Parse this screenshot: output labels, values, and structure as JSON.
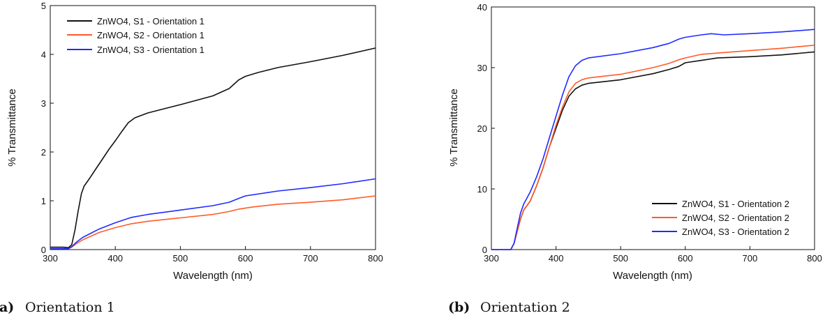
{
  "chart_data": [
    {
      "type": "line",
      "caption_label": "(a)",
      "caption_text": "Orientation 1",
      "xlabel": "Wavelength (nm)",
      "ylabel": "% Transmittance",
      "xlim": [
        300,
        800
      ],
      "ylim": [
        0,
        5
      ],
      "xticks": [
        300,
        400,
        500,
        600,
        700,
        800
      ],
      "yticks": [
        0,
        1,
        2,
        3,
        4,
        5
      ],
      "grid": false,
      "legend_position": "top-left",
      "series": [
        {
          "name": "ZnWO4, S1 - Orientation 1",
          "color": "#111111",
          "points": [
            [
              300,
              0.05
            ],
            [
              320,
              0.05
            ],
            [
              328,
              0.04
            ],
            [
              333,
              0.1
            ],
            [
              338,
              0.4
            ],
            [
              343,
              0.8
            ],
            [
              348,
              1.15
            ],
            [
              352,
              1.3
            ],
            [
              360,
              1.45
            ],
            [
              370,
              1.65
            ],
            [
              380,
              1.85
            ],
            [
              390,
              2.05
            ],
            [
              400,
              2.23
            ],
            [
              410,
              2.42
            ],
            [
              420,
              2.6
            ],
            [
              430,
              2.7
            ],
            [
              450,
              2.8
            ],
            [
              500,
              2.97
            ],
            [
              550,
              3.15
            ],
            [
              575,
              3.3
            ],
            [
              590,
              3.48
            ],
            [
              600,
              3.55
            ],
            [
              620,
              3.63
            ],
            [
              650,
              3.73
            ],
            [
              700,
              3.85
            ],
            [
              750,
              3.98
            ],
            [
              800,
              4.13
            ]
          ]
        },
        {
          "name": "ZnWO4, S2 - Orientation 1",
          "color": "#ff5a28",
          "points": [
            [
              300,
              0.02
            ],
            [
              328,
              0.02
            ],
            [
              333,
              0.05
            ],
            [
              340,
              0.12
            ],
            [
              350,
              0.2
            ],
            [
              375,
              0.35
            ],
            [
              400,
              0.45
            ],
            [
              425,
              0.53
            ],
            [
              450,
              0.58
            ],
            [
              500,
              0.65
            ],
            [
              550,
              0.72
            ],
            [
              575,
              0.78
            ],
            [
              590,
              0.83
            ],
            [
              610,
              0.87
            ],
            [
              650,
              0.93
            ],
            [
              700,
              0.97
            ],
            [
              750,
              1.02
            ],
            [
              800,
              1.1
            ]
          ]
        },
        {
          "name": "ZnWO4, S3 - Orientation 1",
          "color": "#1f2bff",
          "points": [
            [
              300,
              0.02
            ],
            [
              328,
              0.02
            ],
            [
              333,
              0.06
            ],
            [
              340,
              0.15
            ],
            [
              350,
              0.25
            ],
            [
              375,
              0.42
            ],
            [
              400,
              0.55
            ],
            [
              425,
              0.66
            ],
            [
              450,
              0.72
            ],
            [
              500,
              0.81
            ],
            [
              550,
              0.9
            ],
            [
              575,
              0.97
            ],
            [
              590,
              1.05
            ],
            [
              600,
              1.1
            ],
            [
              650,
              1.2
            ],
            [
              700,
              1.27
            ],
            [
              750,
              1.35
            ],
            [
              800,
              1.45
            ]
          ]
        }
      ]
    },
    {
      "type": "line",
      "caption_label": "(b)",
      "caption_text": "Orientation 2",
      "xlabel": "Wavelength (nm)",
      "ylabel": "% Transmittance",
      "xlim": [
        300,
        800
      ],
      "ylim": [
        0,
        40
      ],
      "xticks": [
        300,
        400,
        500,
        600,
        700,
        800
      ],
      "yticks": [
        0,
        10,
        20,
        30,
        40
      ],
      "grid": false,
      "legend_position": "bottom-right",
      "series": [
        {
          "name": "ZnWO4, S1 - Orientation 2",
          "color": "#111111",
          "points": [
            [
              300,
              0
            ],
            [
              330,
              0
            ],
            [
              335,
              1
            ],
            [
              340,
              3
            ],
            [
              345,
              5
            ],
            [
              350,
              6.5
            ],
            [
              360,
              8
            ],
            [
              370,
              10.5
            ],
            [
              380,
              13.5
            ],
            [
              390,
              17
            ],
            [
              400,
              20
            ],
            [
              410,
              23
            ],
            [
              420,
              25.3
            ],
            [
              430,
              26.5
            ],
            [
              440,
              27.1
            ],
            [
              450,
              27.4
            ],
            [
              500,
              28
            ],
            [
              550,
              29
            ],
            [
              575,
              29.7
            ],
            [
              590,
              30.2
            ],
            [
              600,
              30.8
            ],
            [
              625,
              31.2
            ],
            [
              650,
              31.6
            ],
            [
              700,
              31.8
            ],
            [
              750,
              32.1
            ],
            [
              800,
              32.6
            ]
          ]
        },
        {
          "name": "ZnWO4, S2 - Orientation 2",
          "color": "#ff5a28",
          "points": [
            [
              300,
              0
            ],
            [
              330,
              0
            ],
            [
              335,
              1
            ],
            [
              340,
              3
            ],
            [
              345,
              5
            ],
            [
              350,
              6.5
            ],
            [
              360,
              8
            ],
            [
              370,
              10.5
            ],
            [
              380,
              13.5
            ],
            [
              390,
              17
            ],
            [
              400,
              20.5
            ],
            [
              410,
              23.5
            ],
            [
              420,
              26
            ],
            [
              430,
              27.4
            ],
            [
              440,
              28
            ],
            [
              450,
              28.3
            ],
            [
              500,
              28.9
            ],
            [
              550,
              30
            ],
            [
              575,
              30.7
            ],
            [
              590,
              31.3
            ],
            [
              600,
              31.6
            ],
            [
              625,
              32.2
            ],
            [
              650,
              32.4
            ],
            [
              700,
              32.8
            ],
            [
              750,
              33.2
            ],
            [
              800,
              33.7
            ]
          ]
        },
        {
          "name": "ZnWO4, S3 - Orientation 2",
          "color": "#1f2bff",
          "points": [
            [
              300,
              0
            ],
            [
              330,
              0
            ],
            [
              335,
              1
            ],
            [
              340,
              3.5
            ],
            [
              345,
              6
            ],
            [
              350,
              7.5
            ],
            [
              360,
              9.5
            ],
            [
              370,
              12
            ],
            [
              380,
              15
            ],
            [
              390,
              18.5
            ],
            [
              400,
              22
            ],
            [
              410,
              25.5
            ],
            [
              420,
              28.5
            ],
            [
              430,
              30.3
            ],
            [
              440,
              31.2
            ],
            [
              450,
              31.6
            ],
            [
              500,
              32.3
            ],
            [
              550,
              33.3
            ],
            [
              575,
              34
            ],
            [
              590,
              34.7
            ],
            [
              600,
              35
            ],
            [
              625,
              35.4
            ],
            [
              640,
              35.6
            ],
            [
              660,
              35.4
            ],
            [
              700,
              35.6
            ],
            [
              750,
              35.9
            ],
            [
              800,
              36.3
            ]
          ]
        }
      ]
    }
  ]
}
